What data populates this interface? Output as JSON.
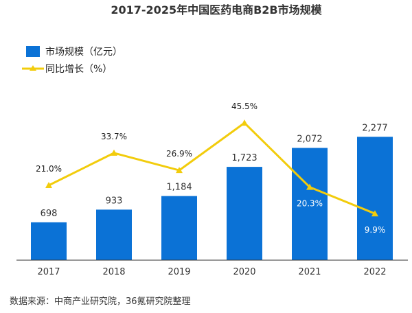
{
  "chart_data": {
    "type": "bar",
    "title": "2017-2025年中国医药电商B2B市场规模",
    "categories": [
      "2017",
      "2018",
      "2019",
      "2020",
      "2021",
      "2022"
    ],
    "series": [
      {
        "name": "市场规模（亿元）",
        "type": "bar",
        "values": [
          698,
          933,
          1184,
          1723,
          2072,
          2277
        ],
        "labels": [
          "698",
          "933",
          "1,184",
          "1,723",
          "2,072",
          "2,277"
        ],
        "color": "#0b72d6"
      },
      {
        "name": "同比增长（%）",
        "type": "line",
        "values": [
          21.0,
          33.7,
          26.9,
          45.5,
          20.3,
          9.9
        ],
        "labels": [
          "21.0%",
          "33.7%",
          "26.9%",
          "45.5%",
          "20.3%",
          "9.9%"
        ],
        "color": "#f2cc0c"
      }
    ],
    "bar_ylim": [
      0,
      2900
    ],
    "line_ylim": [
      -5,
      55
    ],
    "legend_position": "top-left",
    "grid": false,
    "source": "数据来源：中商产业研究院，36氪研究院整理"
  }
}
